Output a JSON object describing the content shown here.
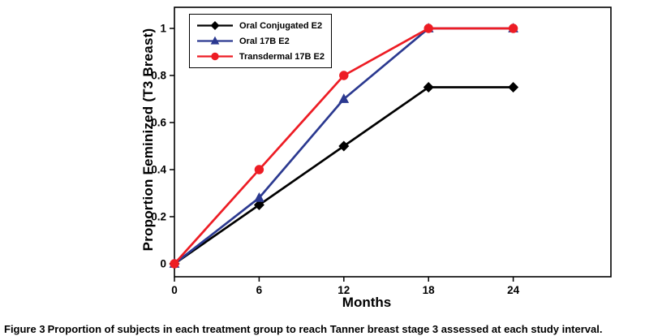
{
  "figure": {
    "caption_label": "Figure 3",
    "caption_text": "Proportion of subjects in each treatment group to reach Tanner breast stage 3 assessed at each study interval."
  },
  "chart_data": {
    "type": "line",
    "title": "",
    "xlabel": "Months",
    "ylabel": "Proportion Feminized (T3 Breast)",
    "x": [
      0,
      6,
      12,
      18,
      24
    ],
    "xticks": [
      0,
      6,
      12,
      18,
      24
    ],
    "ytick_labels": [
      "0",
      "0.2",
      "0.4",
      "0.6",
      "0.8",
      "1"
    ],
    "yticks": [
      0,
      0.2,
      0.4,
      0.6,
      0.8,
      1
    ],
    "xlim": [
      0,
      31
    ],
    "ylim": [
      -0.055,
      1.09
    ],
    "grid": false,
    "legend_position": "top-left",
    "series": [
      {
        "name": "Oral Conjugated E2",
        "color": "#000000",
        "marker": "diamond",
        "values": [
          0,
          0.25,
          0.5,
          0.75,
          0.75
        ]
      },
      {
        "name": "Oral 17B E2",
        "color": "#2b3990",
        "marker": "triangle",
        "values": [
          0,
          0.28,
          0.7,
          1,
          1
        ]
      },
      {
        "name": "Transdermal 17B E2",
        "color": "#ed1c24",
        "marker": "circle",
        "values": [
          0,
          0.4,
          0.8,
          1,
          1
        ]
      }
    ]
  }
}
